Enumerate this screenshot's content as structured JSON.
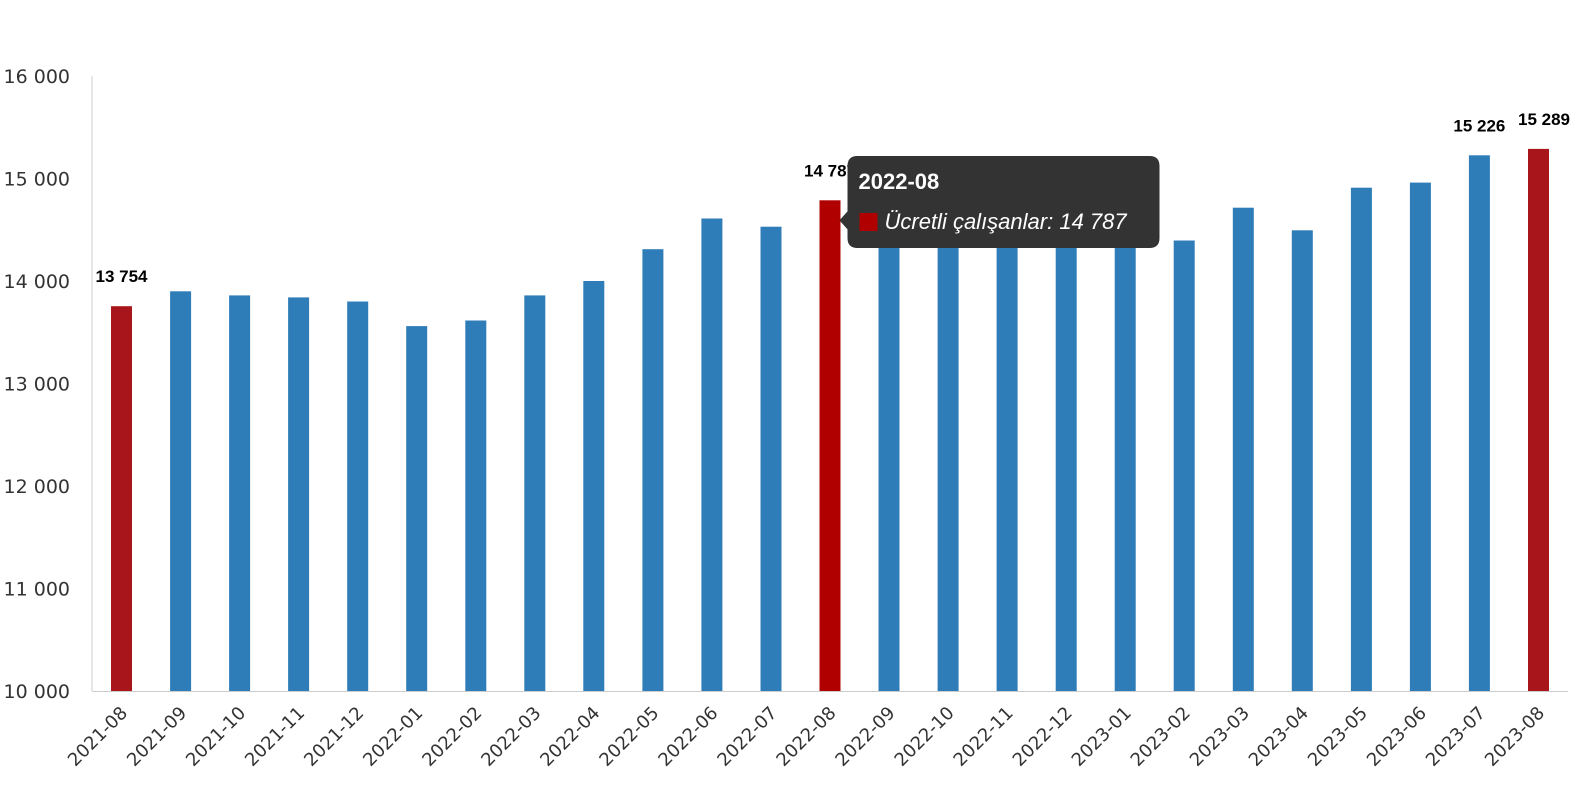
{
  "colors": {
    "bar": "#2f7db8",
    "highlight": "#a8161b",
    "hover": "#b00000",
    "axis": "#cccccc",
    "tooltip_bg": "#333333"
  },
  "chart_data": {
    "type": "bar",
    "categories": [
      "2021-08",
      "2021-09",
      "2021-10",
      "2021-11",
      "2021-12",
      "2022-01",
      "2022-02",
      "2022-03",
      "2022-04",
      "2022-05",
      "2022-06",
      "2022-07",
      "2022-08",
      "2022-09",
      "2022-10",
      "2022-11",
      "2022-12",
      "2023-01",
      "2023-02",
      "2023-03",
      "2023-04",
      "2023-05",
      "2023-06",
      "2023-07",
      "2023-08"
    ],
    "series": [
      {
        "name": "Ücretli çalışanlar",
        "values": [
          13754,
          13900,
          13860,
          13840,
          13800,
          13560,
          13615,
          13860,
          14000,
          14310,
          14610,
          14530,
          14787,
          14900,
          14890,
          14830,
          14800,
          14560,
          14395,
          14715,
          14495,
          14910,
          14960,
          15226,
          15289
        ]
      }
    ],
    "highlighted_categories": [
      "2021-08",
      "2022-08",
      "2023-08"
    ],
    "data_labels": [
      {
        "category": "2021-08",
        "text": "13 754"
      },
      {
        "category": "2022-08",
        "text": "14 787"
      },
      {
        "category": "2023-07",
        "text": "15 226"
      },
      {
        "category": "2023-08",
        "text": "15 289"
      }
    ],
    "yticks": [
      "10 000",
      "11 000",
      "12 000",
      "13 000",
      "14 000",
      "15 000",
      "16 000"
    ],
    "ylim": [
      10000,
      16000
    ],
    "grid": false,
    "legend": "none",
    "title": "",
    "xlabel": "",
    "ylabel": ""
  },
  "tooltip": {
    "category": "2022-08",
    "title": "2022-08",
    "text": "Ücretli çalışanlar: 14 787"
  }
}
